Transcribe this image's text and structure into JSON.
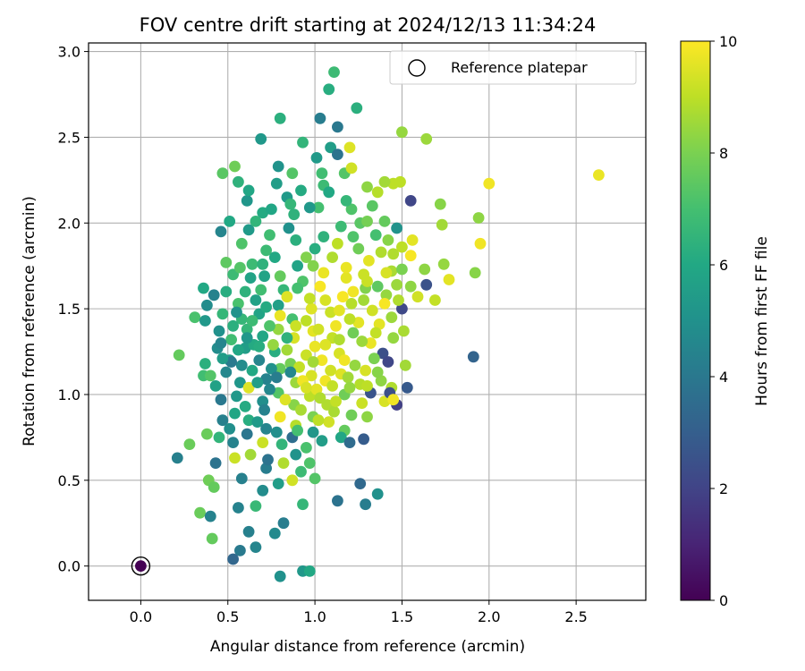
{
  "chart_data": {
    "type": "scatter",
    "title": "FOV centre drift starting at 2024/12/13 11:34:24",
    "xlabel": "Angular distance from reference (arcmin)",
    "ylabel": "Rotation from reference (arcmin)",
    "xlim": [
      -0.3,
      2.9
    ],
    "ylim": [
      -0.2,
      3.05
    ],
    "xticks": [
      0.0,
      0.5,
      1.0,
      1.5,
      2.0,
      2.5
    ],
    "xtick_labels": [
      "0.0",
      "0.5",
      "1.0",
      "1.5",
      "2.0",
      "2.5"
    ],
    "yticks": [
      0.0,
      0.5,
      1.0,
      1.5,
      2.0,
      2.5,
      3.0
    ],
    "ytick_labels": [
      "0.0",
      "0.5",
      "1.0",
      "1.5",
      "2.0",
      "2.5",
      "3.0"
    ],
    "grid": true,
    "colormap": "viridis",
    "colorbar": {
      "label": "Hours from first FF file",
      "range": [
        0,
        10
      ],
      "ticks": [
        0,
        2,
        4,
        6,
        8,
        10
      ],
      "tick_labels": [
        "0",
        "2",
        "4",
        "6",
        "8",
        "10"
      ]
    },
    "legend": {
      "placement": "top-right",
      "entries": [
        {
          "label": "Reference platepar",
          "marker": "open-circle"
        }
      ]
    },
    "reference_point": {
      "x": 0.0,
      "y": 0.0,
      "hours": 0.0
    },
    "points": [
      [
        1.11,
        2.88,
        6.8
      ],
      [
        1.08,
        2.78,
        6.2
      ],
      [
        1.03,
        2.61,
        4.2
      ],
      [
        1.13,
        2.56,
        4.0
      ],
      [
        1.24,
        2.67,
        6.3
      ],
      [
        0.8,
        2.61,
        6.3
      ],
      [
        1.5,
        2.53,
        8.4
      ],
      [
        1.64,
        2.49,
        8.5
      ],
      [
        0.69,
        2.49,
        5.3
      ],
      [
        0.93,
        2.47,
        6.5
      ],
      [
        1.2,
        2.44,
        9.5
      ],
      [
        1.09,
        2.44,
        5.5
      ],
      [
        1.13,
        2.4,
        3.8
      ],
      [
        1.01,
        2.38,
        5.4
      ],
      [
        0.79,
        2.33,
        5.1
      ],
      [
        0.54,
        2.33,
        7.8
      ],
      [
        0.47,
        2.29,
        7.4
      ],
      [
        0.87,
        2.29,
        7.3
      ],
      [
        1.04,
        2.29,
        6.9
      ],
      [
        1.17,
        2.29,
        7.3
      ],
      [
        1.21,
        2.32,
        9.3
      ],
      [
        2.63,
        2.28,
        9.7
      ],
      [
        1.49,
        2.24,
        9.0
      ],
      [
        1.45,
        2.23,
        9.0
      ],
      [
        2.0,
        2.23,
        9.8
      ],
      [
        1.4,
        2.24,
        8.6
      ],
      [
        1.3,
        2.21,
        8.3
      ],
      [
        1.55,
        2.13,
        2.1
      ],
      [
        1.72,
        2.11,
        8.2
      ],
      [
        0.56,
        2.24,
        6.4
      ],
      [
        0.92,
        2.19,
        6.1
      ],
      [
        0.84,
        2.15,
        5.4
      ],
      [
        0.61,
        2.13,
        5.2
      ],
      [
        0.62,
        2.19,
        5.9
      ],
      [
        0.78,
        2.23,
        5.5
      ],
      [
        1.05,
        2.22,
        6.8
      ],
      [
        1.21,
        2.08,
        7.2
      ],
      [
        1.33,
        2.1,
        7.4
      ],
      [
        1.36,
        2.18,
        8.9
      ],
      [
        0.51,
        2.01,
        6.0
      ],
      [
        1.73,
        1.99,
        8.6
      ],
      [
        1.94,
        2.03,
        8.3
      ],
      [
        0.46,
        1.95,
        4.5
      ],
      [
        0.62,
        1.96,
        5.4
      ],
      [
        0.7,
        2.06,
        6.1
      ],
      [
        0.88,
        2.05,
        6.4
      ],
      [
        1.02,
        2.09,
        7.0
      ],
      [
        1.15,
        1.98,
        6.8
      ],
      [
        1.26,
        2.0,
        7.4
      ],
      [
        1.4,
        2.01,
        7.6
      ],
      [
        1.47,
        1.97,
        5.1
      ],
      [
        1.95,
        1.88,
        9.8
      ],
      [
        1.56,
        1.9,
        9.6
      ],
      [
        1.5,
        1.86,
        9.0
      ],
      [
        0.58,
        1.88,
        7.2
      ],
      [
        0.72,
        1.84,
        6.8
      ],
      [
        0.89,
        1.9,
        6.3
      ],
      [
        1.13,
        1.88,
        9.0
      ],
      [
        1.25,
        1.85,
        7.8
      ],
      [
        1.38,
        1.83,
        8.8
      ],
      [
        0.49,
        1.77,
        7.5
      ],
      [
        0.64,
        1.76,
        6.8
      ],
      [
        0.77,
        1.8,
        6.0
      ],
      [
        0.99,
        1.75,
        8.1
      ],
      [
        1.31,
        1.78,
        9.6
      ],
      [
        1.74,
        1.76,
        8.4
      ],
      [
        1.77,
        1.67,
        9.6
      ],
      [
        1.92,
        1.71,
        8.2
      ],
      [
        1.63,
        1.73,
        8.3
      ],
      [
        1.44,
        1.72,
        8.7
      ],
      [
        1.47,
        1.64,
        8.5
      ],
      [
        1.55,
        1.63,
        8.3
      ],
      [
        1.64,
        1.64,
        2.5
      ],
      [
        1.69,
        1.55,
        9.1
      ],
      [
        1.59,
        1.57,
        9.3
      ],
      [
        0.36,
        1.62,
        6.0
      ],
      [
        0.42,
        1.58,
        4.4
      ],
      [
        0.53,
        1.7,
        6.8
      ],
      [
        0.6,
        1.6,
        6.4
      ],
      [
        0.71,
        1.69,
        5.8
      ],
      [
        0.82,
        1.61,
        6.6
      ],
      [
        0.93,
        1.66,
        7.2
      ],
      [
        1.05,
        1.71,
        9.7
      ],
      [
        1.18,
        1.68,
        9.6
      ],
      [
        1.29,
        1.62,
        8.1
      ],
      [
        1.41,
        1.58,
        8.4
      ],
      [
        0.38,
        1.52,
        4.8
      ],
      [
        0.47,
        1.47,
        6.6
      ],
      [
        0.56,
        1.53,
        7.1
      ],
      [
        0.68,
        1.47,
        5.8
      ],
      [
        0.79,
        1.52,
        5.6
      ],
      [
        0.87,
        1.44,
        7.0
      ],
      [
        0.98,
        1.5,
        9.5
      ],
      [
        1.09,
        1.48,
        9.2
      ],
      [
        1.21,
        1.53,
        8.9
      ],
      [
        1.33,
        1.49,
        9.3
      ],
      [
        1.44,
        1.45,
        8.5
      ],
      [
        1.5,
        1.5,
        2.2
      ],
      [
        1.37,
        1.41,
        9.6
      ],
      [
        0.31,
        1.45,
        7.1
      ],
      [
        0.37,
        1.43,
        5.3
      ],
      [
        0.45,
        1.37,
        5.0
      ],
      [
        0.52,
        1.32,
        6.9
      ],
      [
        0.61,
        1.38,
        6.6
      ],
      [
        0.7,
        1.34,
        5.9
      ],
      [
        0.79,
        1.38,
        8.4
      ],
      [
        0.88,
        1.33,
        9.4
      ],
      [
        0.99,
        1.37,
        9.6
      ],
      [
        1.1,
        1.33,
        9.1
      ],
      [
        1.22,
        1.36,
        7.8
      ],
      [
        1.32,
        1.3,
        9.7
      ],
      [
        1.45,
        1.33,
        8.4
      ],
      [
        1.51,
        1.37,
        8.7
      ],
      [
        1.39,
        1.24,
        2.4
      ],
      [
        0.22,
        1.23,
        7.6
      ],
      [
        0.37,
        1.18,
        6.3
      ],
      [
        0.44,
        1.27,
        4.8
      ],
      [
        0.51,
        1.2,
        5.5
      ],
      [
        0.6,
        1.27,
        5.5
      ],
      [
        0.68,
        1.2,
        4.5
      ],
      [
        0.77,
        1.25,
        6.2
      ],
      [
        0.86,
        1.18,
        7.9
      ],
      [
        0.95,
        1.23,
        9.2
      ],
      [
        1.04,
        1.2,
        9.8
      ],
      [
        1.14,
        1.24,
        9.4
      ],
      [
        1.23,
        1.17,
        8.4
      ],
      [
        1.34,
        1.21,
        8.0
      ],
      [
        1.42,
        1.19,
        2.1
      ],
      [
        1.52,
        1.17,
        8.6
      ],
      [
        1.91,
        1.22,
        3.2
      ],
      [
        0.36,
        1.11,
        6.9
      ],
      [
        0.43,
        1.05,
        5.7
      ],
      [
        0.49,
        1.13,
        4.6
      ],
      [
        0.57,
        1.07,
        5.2
      ],
      [
        0.64,
        1.14,
        6.0
      ],
      [
        0.72,
        1.09,
        4.4
      ],
      [
        0.8,
        1.15,
        7.6
      ],
      [
        0.89,
        1.07,
        8.5
      ],
      [
        0.98,
        1.11,
        9.4
      ],
      [
        1.06,
        1.08,
        9.8
      ],
      [
        1.15,
        1.12,
        9.5
      ],
      [
        1.26,
        1.06,
        8.9
      ],
      [
        1.38,
        1.08,
        8.3
      ],
      [
        1.44,
        1.04,
        8.8
      ],
      [
        1.53,
        1.04,
        2.8
      ],
      [
        0.46,
        0.97,
        4.0
      ],
      [
        0.55,
        0.99,
        5.3
      ],
      [
        0.62,
        1.04,
        9.5
      ],
      [
        0.7,
        0.96,
        4.9
      ],
      [
        0.79,
        1.01,
        7.3
      ],
      [
        0.88,
        0.94,
        8.2
      ],
      [
        0.97,
        0.99,
        9.0
      ],
      [
        1.07,
        0.94,
        8.8
      ],
      [
        1.17,
        1.0,
        7.8
      ],
      [
        1.27,
        0.95,
        9.2
      ],
      [
        1.4,
        0.96,
        9.4
      ],
      [
        1.43,
        1.01,
        2.4
      ],
      [
        1.47,
        0.94,
        1.9
      ],
      [
        1.45,
        0.97,
        9.8
      ],
      [
        0.47,
        0.85,
        4.3
      ],
      [
        0.54,
        0.89,
        5.9
      ],
      [
        0.62,
        0.85,
        6.2
      ],
      [
        0.71,
        0.91,
        4.4
      ],
      [
        0.8,
        0.87,
        9.8
      ],
      [
        0.89,
        0.82,
        8.9
      ],
      [
        0.99,
        0.87,
        8.0
      ],
      [
        1.08,
        0.84,
        9.3
      ],
      [
        1.17,
        0.79,
        7.6
      ],
      [
        0.38,
        0.77,
        7.7
      ],
      [
        0.45,
        0.75,
        6.5
      ],
      [
        0.53,
        0.72,
        4.4
      ],
      [
        0.61,
        0.77,
        3.9
      ],
      [
        0.7,
        0.72,
        9.2
      ],
      [
        0.78,
        0.78,
        4.9
      ],
      [
        0.87,
        0.75,
        3.6
      ],
      [
        0.95,
        0.69,
        7.1
      ],
      [
        1.04,
        0.73,
        5.5
      ],
      [
        1.15,
        0.75,
        5.9
      ],
      [
        1.2,
        0.72,
        3.5
      ],
      [
        1.28,
        0.74,
        2.9
      ],
      [
        0.28,
        0.71,
        7.7
      ],
      [
        0.21,
        0.63,
        4.3
      ],
      [
        0.43,
        0.6,
        3.8
      ],
      [
        0.54,
        0.63,
        9.2
      ],
      [
        0.63,
        0.65,
        8.6
      ],
      [
        0.72,
        0.57,
        4.2
      ],
      [
        0.82,
        0.6,
        8.8
      ],
      [
        0.92,
        0.55,
        6.8
      ],
      [
        1.0,
        0.51,
        7.3
      ],
      [
        0.87,
        0.5,
        9.3
      ],
      [
        0.39,
        0.5,
        7.8
      ],
      [
        0.42,
        0.46,
        7.6
      ],
      [
        0.58,
        0.51,
        4.3
      ],
      [
        0.7,
        0.44,
        4.8
      ],
      [
        0.79,
        0.48,
        5.5
      ],
      [
        1.26,
        0.48,
        3.4
      ],
      [
        1.36,
        0.42,
        5.0
      ],
      [
        0.34,
        0.31,
        7.7
      ],
      [
        0.56,
        0.34,
        4.4
      ],
      [
        0.66,
        0.35,
        6.7
      ],
      [
        0.93,
        0.36,
        6.6
      ],
      [
        1.13,
        0.38,
        3.8
      ],
      [
        1.29,
        0.36,
        4.2
      ],
      [
        0.4,
        0.29,
        4.4
      ],
      [
        0.82,
        0.25,
        4.2
      ],
      [
        0.62,
        0.2,
        4.3
      ],
      [
        0.77,
        0.19,
        4.7
      ],
      [
        0.41,
        0.16,
        7.6
      ],
      [
        0.57,
        0.09,
        4.1
      ],
      [
        0.66,
        0.11,
        4.5
      ],
      [
        0.53,
        0.04,
        3.3
      ],
      [
        0.8,
        -0.06,
        5.0
      ],
      [
        0.93,
        -0.03,
        5.3
      ],
      [
        0.97,
        -0.03,
        6.0
      ],
      [
        1.02,
        0.85,
        9.0
      ],
      [
        1.11,
        0.9,
        8.7
      ],
      [
        1.21,
        0.88,
        7.8
      ],
      [
        1.3,
        0.87,
        8.3
      ],
      [
        0.91,
        1.16,
        9.1
      ],
      [
        1.0,
        1.28,
        9.7
      ],
      [
        1.06,
        1.55,
        9.4
      ],
      [
        1.16,
        1.57,
        9.9
      ],
      [
        1.25,
        1.42,
        9.6
      ],
      [
        0.84,
        1.57,
        9.5
      ],
      [
        0.95,
        1.43,
        9.0
      ],
      [
        1.12,
        1.4,
        9.8
      ],
      [
        1.03,
        1.63,
        9.9
      ],
      [
        1.18,
        1.74,
        9.7
      ],
      [
        1.28,
        1.7,
        9.2
      ],
      [
        0.95,
        1.8,
        8.1
      ],
      [
        1.05,
        1.92,
        6.4
      ],
      [
        0.74,
        1.93,
        6.9
      ],
      [
        0.85,
        1.97,
        5.0
      ],
      [
        1.35,
        1.93,
        7.0
      ],
      [
        0.66,
        1.55,
        5.7
      ],
      [
        0.74,
        1.4,
        7.2
      ],
      [
        0.58,
        1.44,
        6.6
      ],
      [
        0.65,
        1.29,
        6.1
      ],
      [
        0.75,
        1.15,
        5.0
      ],
      [
        0.84,
        1.26,
        8.6
      ],
      [
        0.93,
        1.08,
        9.8
      ],
      [
        0.58,
        1.17,
        4.8
      ],
      [
        0.67,
        1.07,
        5.5
      ],
      [
        0.74,
        1.03,
        4.6
      ],
      [
        0.83,
        0.97,
        9.5
      ],
      [
        0.92,
        0.91,
        8.7
      ],
      [
        1.01,
        1.03,
        9.6
      ],
      [
        1.1,
        1.05,
        9.1
      ],
      [
        1.19,
        1.1,
        8.6
      ],
      [
        1.29,
        1.14,
        9.4
      ],
      [
        1.36,
        1.13,
        8.2
      ],
      [
        1.32,
        1.01,
        2.6
      ],
      [
        0.97,
        0.6,
        7.2
      ],
      [
        0.89,
        0.65,
        5.1
      ],
      [
        0.73,
        0.62,
        3.8
      ],
      [
        0.51,
        0.8,
        4.9
      ],
      [
        0.6,
        0.93,
        6.1
      ],
      [
        0.67,
        0.84,
        5.4
      ],
      [
        1.41,
        1.71,
        9.4
      ],
      [
        1.45,
        1.82,
        8.8
      ],
      [
        1.36,
        1.63,
        7.5
      ],
      [
        1.28,
        1.55,
        8.6
      ],
      [
        1.2,
        1.44,
        9.0
      ],
      [
        1.14,
        1.32,
        8.8
      ],
      [
        1.06,
        1.29,
        9.5
      ],
      [
        0.97,
        1.56,
        9.1
      ],
      [
        0.9,
        1.62,
        7.0
      ],
      [
        0.8,
        1.69,
        7.6
      ],
      [
        0.7,
        1.76,
        6.4
      ],
      [
        0.63,
        1.68,
        5.8
      ],
      [
        0.57,
        1.74,
        7.3
      ],
      [
        0.49,
        1.6,
        6.2
      ],
      [
        0.55,
        1.48,
        5.1
      ],
      [
        0.46,
        1.3,
        4.5
      ],
      [
        0.52,
        1.19,
        4.1
      ],
      [
        0.4,
        1.11,
        7.3
      ],
      [
        1.55,
        1.81,
        9.9
      ],
      [
        1.5,
        1.73,
        8.0
      ],
      [
        1.42,
        1.9,
        8.2
      ],
      [
        1.3,
        2.01,
        7.9
      ],
      [
        1.18,
        2.13,
        6.6
      ],
      [
        1.08,
        2.18,
        6.0
      ],
      [
        0.97,
        2.09,
        5.3
      ],
      [
        0.86,
        2.11,
        6.6
      ],
      [
        0.75,
        2.08,
        5.9
      ],
      [
        0.66,
        2.01,
        6.5
      ],
      [
        0.9,
        1.75,
        5.8
      ],
      [
        1.0,
        1.85,
        6.2
      ],
      [
        1.1,
        1.8,
        8.8
      ],
      [
        1.22,
        1.92,
        7.2
      ],
      [
        1.3,
        1.66,
        9.2
      ],
      [
        1.22,
        1.6,
        9.8
      ],
      [
        1.14,
        1.49,
        9.6
      ],
      [
        1.02,
        1.38,
        9.3
      ],
      [
        0.84,
        1.33,
        6.4
      ],
      [
        0.76,
        1.29,
        8.4
      ],
      [
        0.69,
        1.61,
        6.9
      ],
      [
        0.61,
        1.33,
        5.3
      ],
      [
        0.53,
        1.4,
        6.3
      ],
      [
        1.4,
        1.53,
        9.9
      ],
      [
        1.48,
        1.55,
        8.8
      ],
      [
        1.35,
        1.36,
        9.1
      ],
      [
        1.27,
        1.31,
        8.5
      ],
      [
        1.17,
        1.2,
        9.8
      ],
      [
        1.09,
        1.14,
        9.3
      ],
      [
        0.99,
        1.19,
        8.6
      ],
      [
        0.89,
        1.4,
        9.2
      ],
      [
        0.8,
        1.46,
        9.7
      ],
      [
        0.72,
        1.51,
        6.1
      ],
      [
        0.64,
        1.43,
        6.8
      ],
      [
        0.47,
        1.21,
        5.5
      ],
      [
        0.56,
        1.26,
        5.9
      ],
      [
        0.68,
        1.28,
        6.2
      ],
      [
        0.78,
        1.1,
        4.2
      ],
      [
        0.86,
        1.13,
        4.6
      ],
      [
        0.95,
        1.04,
        9.4
      ],
      [
        1.03,
        0.98,
        8.8
      ],
      [
        1.12,
        0.96,
        9.1
      ],
      [
        1.2,
        1.04,
        8.4
      ],
      [
        1.3,
        1.05,
        9.0
      ],
      [
        0.72,
        0.8,
        4.5
      ],
      [
        0.81,
        0.71,
        6.5
      ],
      [
        0.9,
        0.79,
        7.0
      ],
      [
        0.99,
        0.78,
        5.2
      ]
    ]
  }
}
